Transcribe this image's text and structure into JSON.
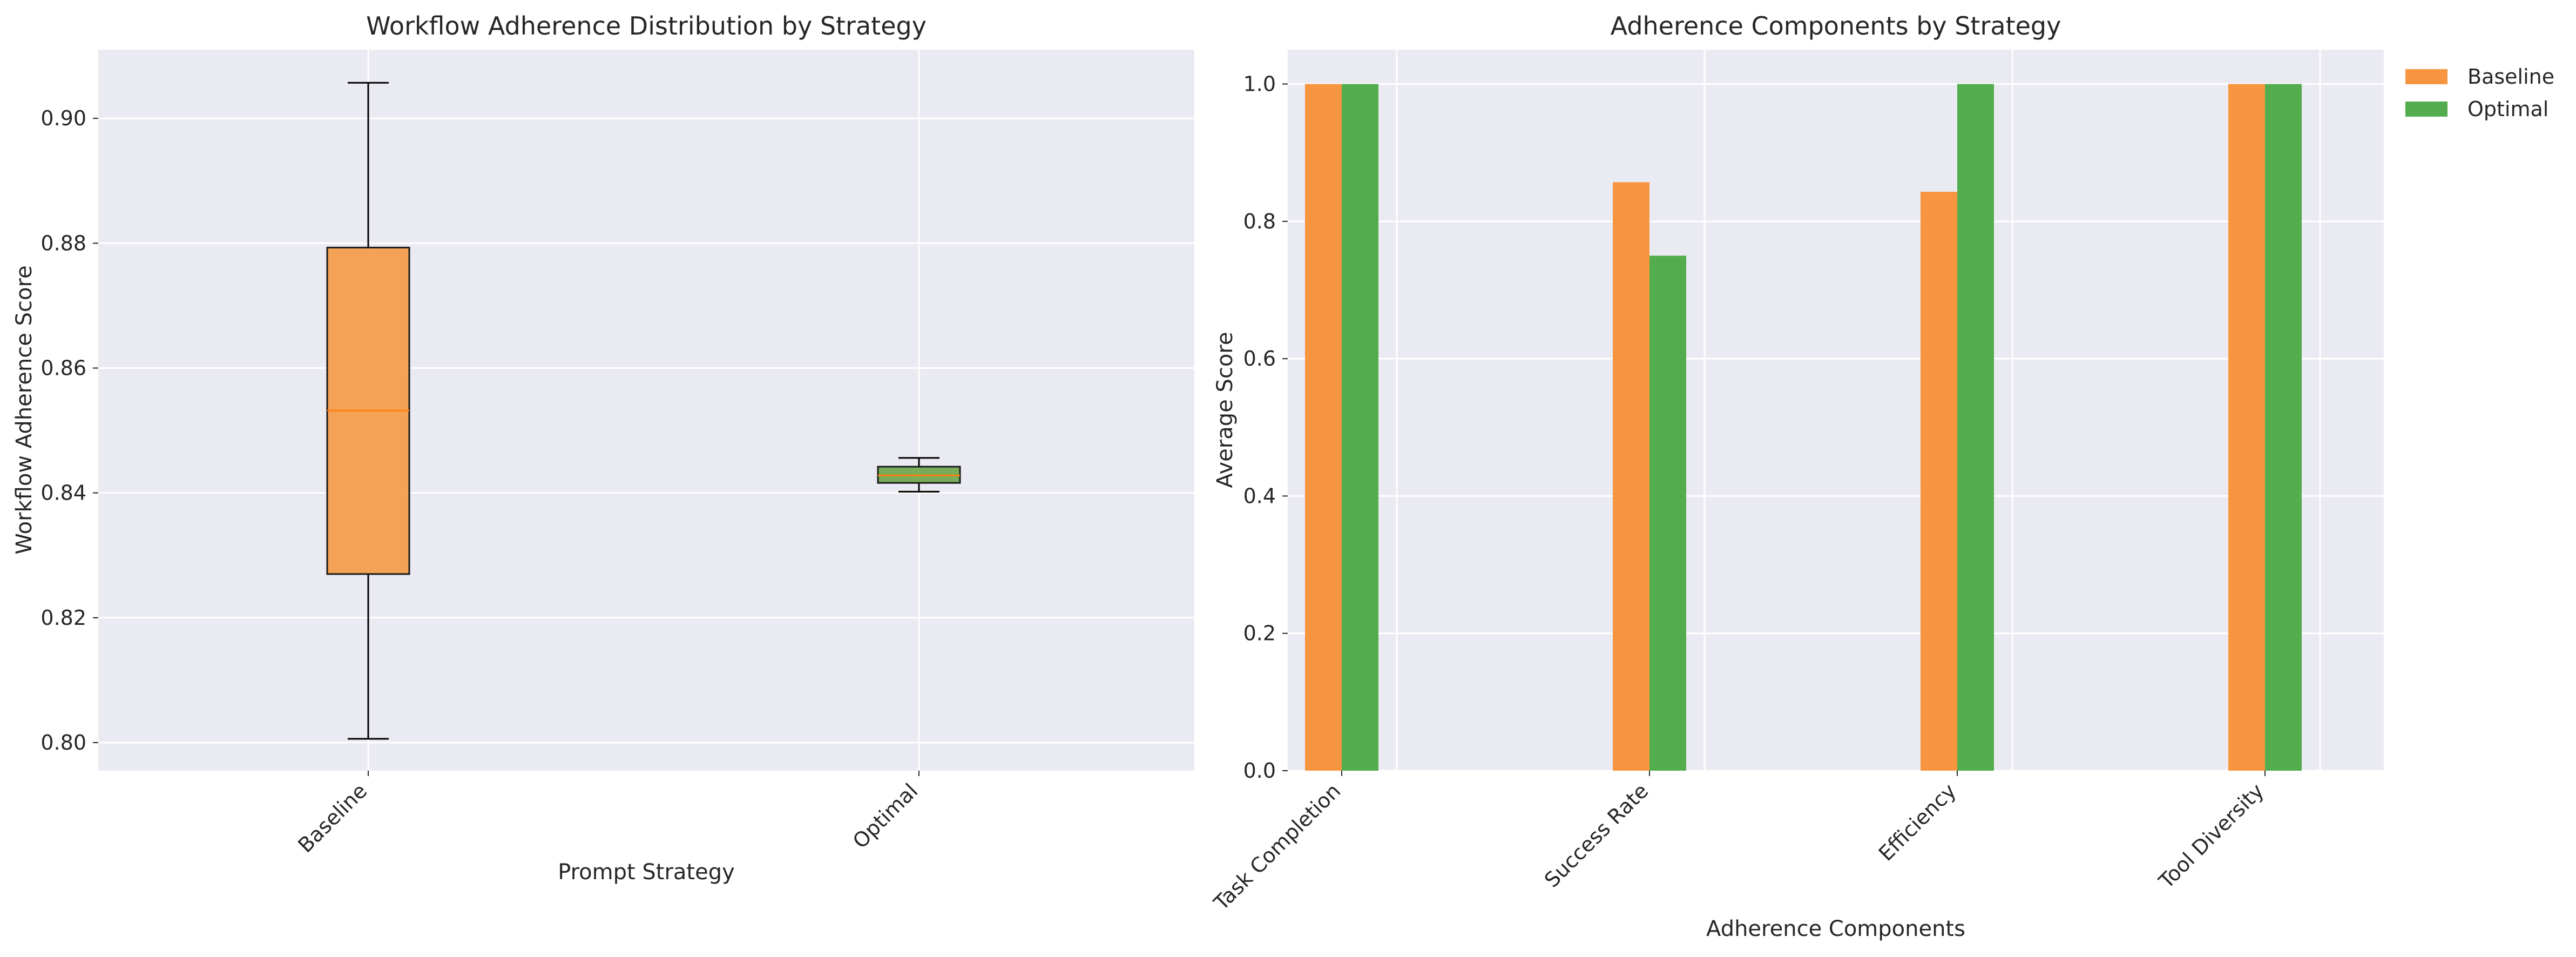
{
  "chart_data": [
    {
      "type": "box",
      "title": "Workflow Adherence Distribution by Strategy",
      "xlabel": "Prompt Strategy",
      "ylabel": "Workflow Adherence Score",
      "categories": [
        "Baseline",
        "Optimal"
      ],
      "ylim": [
        0.7955,
        0.911
      ],
      "yticks": [
        0.8,
        0.82,
        0.84,
        0.86,
        0.88,
        0.9
      ],
      "grid": true,
      "boxes": [
        {
          "category": "Baseline",
          "min": 0.8006,
          "q1": 0.827,
          "median": 0.8532,
          "q3": 0.8793,
          "max": 0.9057,
          "color": "#F59A45"
        },
        {
          "category": "Optimal",
          "min": 0.8402,
          "q1": 0.8416,
          "median": 0.8428,
          "q3": 0.8442,
          "max": 0.8456,
          "color": "#6BA547"
        }
      ]
    },
    {
      "type": "bar",
      "title": "Adherence Components by Strategy",
      "xlabel": "Adherence Components",
      "ylabel": "Average Score",
      "categories": [
        "Task Completion",
        "Success Rate",
        "Efficiency",
        "Tool Diversity"
      ],
      "ylim": [
        0,
        1.05
      ],
      "yticks": [
        0.0,
        0.2,
        0.4,
        0.6,
        0.8,
        1.0
      ],
      "grid": true,
      "legend_position": "outside-top-right",
      "series": [
        {
          "name": "Baseline",
          "values": [
            1.0,
            0.857,
            0.843,
            1.0
          ],
          "color": "#F89540"
        },
        {
          "name": "Optimal",
          "values": [
            1.0,
            0.75,
            1.0,
            1.0
          ],
          "color": "#53AD4F"
        }
      ]
    }
  ]
}
